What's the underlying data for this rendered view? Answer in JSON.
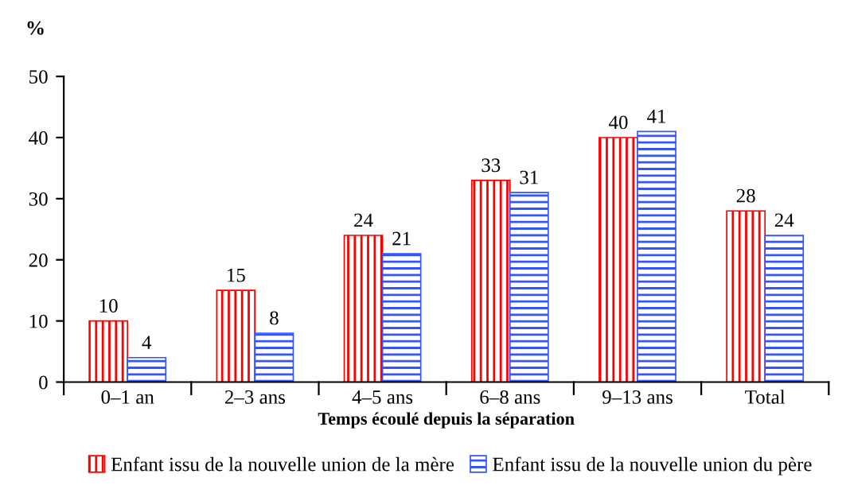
{
  "chart_data": {
    "type": "bar",
    "ylabel": "%",
    "xlabel": "Temps écoulé depuis la séparation",
    "categories": [
      "0–1 an",
      "2–3 ans",
      "4–5 ans",
      "6–8 ans",
      "9–13 ans",
      "Total"
    ],
    "series": [
      {
        "name": "Enfant issu de la nouvelle union de la mère",
        "color": "#ff0000",
        "values": [
          10,
          15,
          24,
          33,
          40,
          28
        ]
      },
      {
        "name": "Enfant issu de la nouvelle union du père",
        "color": "#3355ff",
        "values": [
          4,
          8,
          21,
          31,
          41,
          24
        ]
      }
    ],
    "ylim": [
      0,
      50
    ],
    "yticks": [
      0,
      10,
      20,
      30,
      40,
      50
    ],
    "grid": false,
    "legend": "bottom",
    "data_labels": true
  }
}
